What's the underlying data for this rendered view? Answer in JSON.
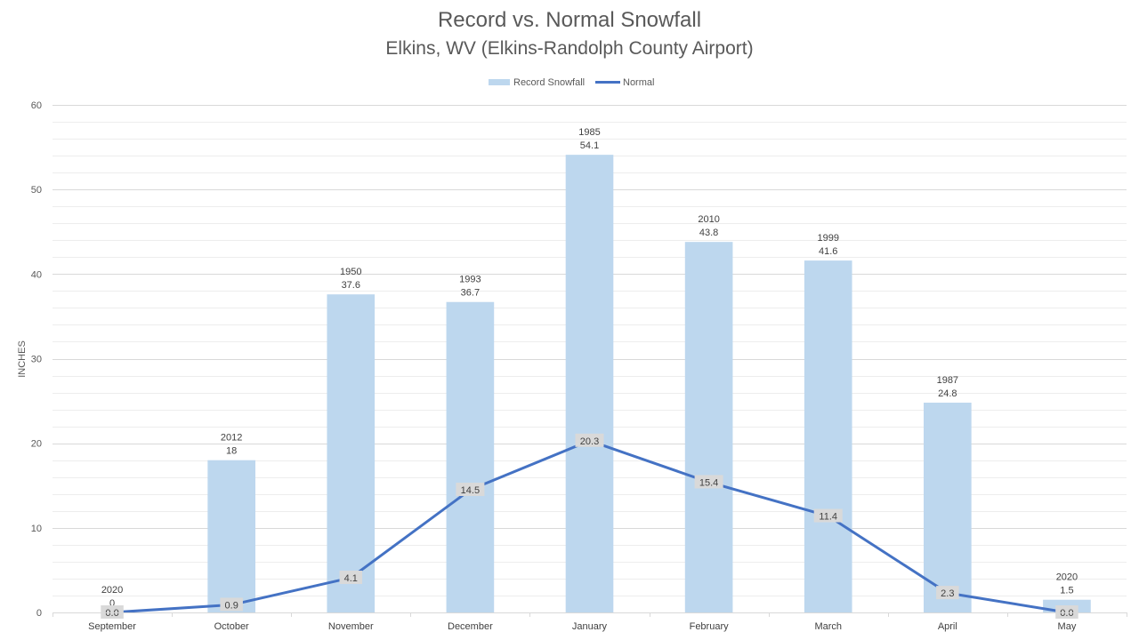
{
  "title": "Record vs. Normal Snowfall",
  "subtitle": "Elkins, WV (Elkins-Randolph  County Airport)",
  "chart_data": {
    "type": "bar",
    "title": "Record vs. Normal Snowfall",
    "subtitle": "Elkins, WV (Elkins-Randolph  County Airport)",
    "xlabel": "",
    "ylabel": "INCHES",
    "ylim": [
      0,
      60
    ],
    "yticks": [
      0,
      10,
      20,
      30,
      40,
      50,
      60
    ],
    "grid": true,
    "legend_position": "top-center",
    "categories": [
      "September",
      "October",
      "November",
      "December",
      "January",
      "February",
      "March",
      "April",
      "May"
    ],
    "series": [
      {
        "name": "Record Snowfall",
        "kind": "bar",
        "color": "#BDD7EE",
        "values": [
          0,
          18,
          37.6,
          36.7,
          54.1,
          43.8,
          41.6,
          24.8,
          1.5
        ],
        "labels": [
          "0",
          "18",
          "37.6",
          "36.7",
          "54.1",
          "43.8",
          "41.6",
          "24.8",
          "1.5"
        ],
        "years": [
          "2020",
          "2012",
          "1950",
          "1993",
          "1985",
          "2010",
          "1999",
          "1987",
          "2020"
        ]
      },
      {
        "name": "Normal",
        "kind": "line",
        "color": "#4472C4",
        "values": [
          0.0,
          0.9,
          4.1,
          14.5,
          20.3,
          15.4,
          11.4,
          2.3,
          0.0
        ],
        "labels": [
          "0.0",
          "0.9",
          "4.1",
          "14.5",
          "20.3",
          "15.4",
          "11.4",
          "2.3",
          "0.0"
        ]
      }
    ]
  }
}
